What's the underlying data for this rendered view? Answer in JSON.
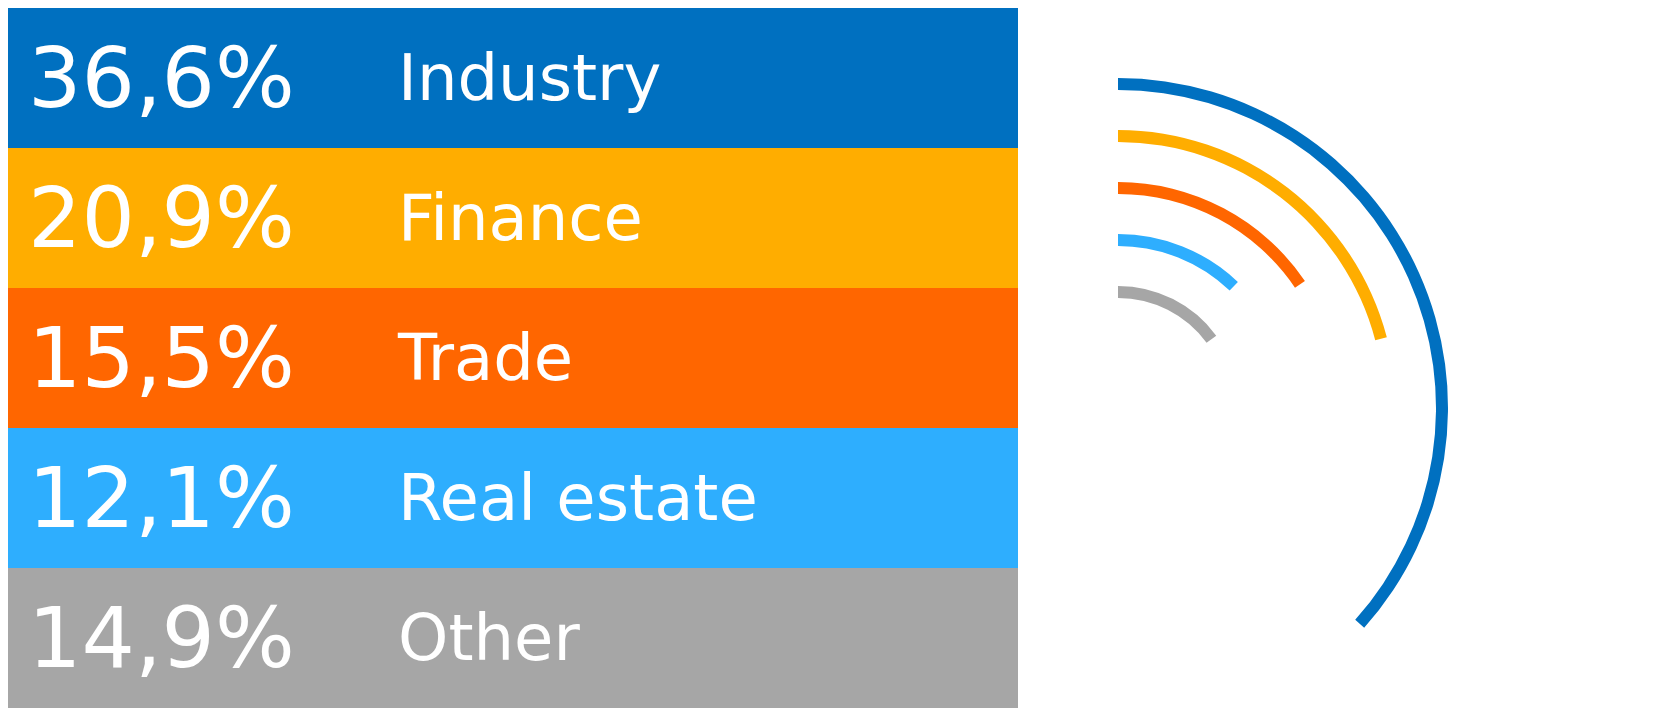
{
  "chart_data": {
    "type": "other",
    "categories": [
      "Industry",
      "Finance",
      "Trade",
      "Real estate",
      "Other"
    ],
    "values": [
      36.6,
      20.9,
      15.5,
      12.1,
      14.9
    ],
    "value_labels": [
      "36,6%",
      "20,9%",
      "15,5%",
      "12,1%",
      "14,9%"
    ],
    "colors": [
      "#0070c0",
      "#ffad00",
      "#ff6600",
      "#2eaefe",
      "#a6a6a6"
    ]
  }
}
